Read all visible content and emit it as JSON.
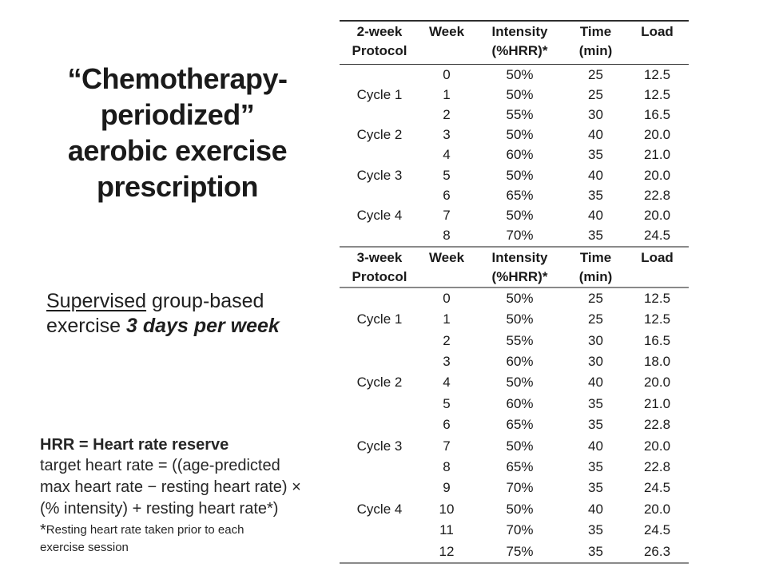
{
  "colors": {
    "background": "#ffffff",
    "text": "#1a1a1a",
    "table_rule_dark": "#2e2e2e",
    "table_rule_gray": "#8a8a8a"
  },
  "title": {
    "lines": [
      "“Chemotherapy-",
      "periodized”",
      "aerobic exercise",
      "prescription"
    ]
  },
  "subtitle": {
    "underlined": "Supervised",
    "line1_rest": " group-based",
    "line2_prefix": "exercise ",
    "emphasized": "3 days per week"
  },
  "footnote": {
    "heading": "HRR = Heart rate reserve",
    "formula_lines": [
      "target heart rate = ((age-predicted",
      "max heart rate − resting heart rate) ×",
      "(% intensity) + resting heart rate*)"
    ],
    "note_star": "*",
    "note_lines": [
      "Resting heart rate taken prior to each",
      "exercise session"
    ]
  },
  "tables": [
    {
      "name": "2-week Protocol",
      "columns": [
        [
          "2-week",
          "Protocol"
        ],
        [
          "Week"
        ],
        [
          "Intensity",
          "(%HRR)*"
        ],
        [
          "Time",
          "(min)"
        ],
        [
          "Load"
        ]
      ],
      "rows": [
        [
          "",
          "0",
          "50%",
          "25",
          "12.5"
        ],
        [
          "Cycle 1",
          "1",
          "50%",
          "25",
          "12.5"
        ],
        [
          "",
          "2",
          "55%",
          "30",
          "16.5"
        ],
        [
          "Cycle 2",
          "3",
          "50%",
          "40",
          "20.0"
        ],
        [
          "",
          "4",
          "60%",
          "35",
          "21.0"
        ],
        [
          "Cycle 3",
          "5",
          "50%",
          "40",
          "20.0"
        ],
        [
          "",
          "6",
          "65%",
          "35",
          "22.8"
        ],
        [
          "Cycle 4",
          "7",
          "50%",
          "40",
          "20.0"
        ],
        [
          "",
          "8",
          "70%",
          "35",
          "24.5"
        ]
      ]
    },
    {
      "name": "3-week Protocol",
      "columns": [
        [
          "3-week",
          "Protocol"
        ],
        [
          "Week"
        ],
        [
          "Intensity",
          "(%HRR)*"
        ],
        [
          "Time",
          "(min)"
        ],
        [
          "Load"
        ]
      ],
      "rows": [
        [
          "",
          "0",
          "50%",
          "25",
          "12.5"
        ],
        [
          "Cycle 1",
          "1",
          "50%",
          "25",
          "12.5"
        ],
        [
          "",
          "2",
          "55%",
          "30",
          "16.5"
        ],
        [
          "",
          "3",
          "60%",
          "30",
          "18.0"
        ],
        [
          "Cycle 2",
          "4",
          "50%",
          "40",
          "20.0"
        ],
        [
          "",
          "5",
          "60%",
          "35",
          "21.0"
        ],
        [
          "",
          "6",
          "65%",
          "35",
          "22.8"
        ],
        [
          "Cycle 3",
          "7",
          "50%",
          "40",
          "20.0"
        ],
        [
          "",
          "8",
          "65%",
          "35",
          "22.8"
        ],
        [
          "",
          "9",
          "70%",
          "35",
          "24.5"
        ],
        [
          "Cycle 4",
          "10",
          "50%",
          "40",
          "20.0"
        ],
        [
          "",
          "11",
          "70%",
          "35",
          "24.5"
        ],
        [
          "",
          "12",
          "75%",
          "35",
          "26.3"
        ]
      ]
    }
  ]
}
